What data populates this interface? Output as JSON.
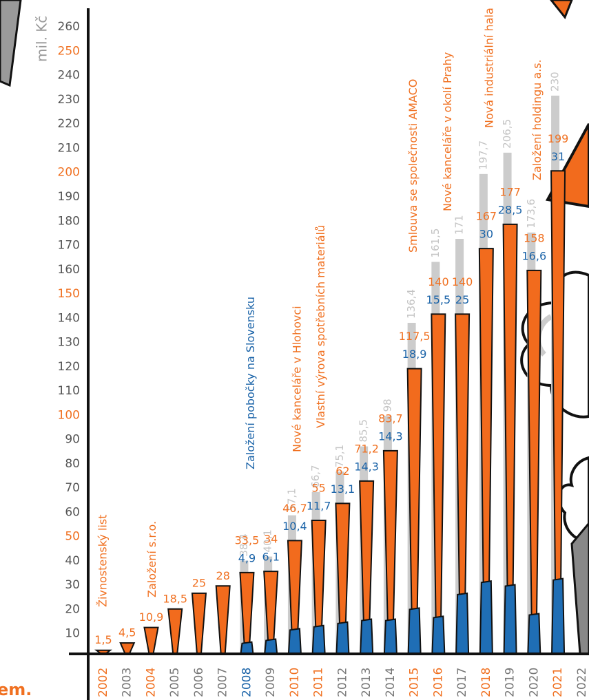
{
  "chart_data": {
    "type": "bar",
    "ylabel": "mil. Kč",
    "footer": "em.",
    "categories": [
      "2002",
      "2003",
      "2004",
      "2005",
      "2006",
      "2007",
      "2008",
      "2009",
      "2010",
      "2011",
      "2012",
      "2013",
      "2014",
      "2015",
      "2016",
      "2017",
      "2018",
      "2019",
      "2020",
      "2021",
      "2022"
    ],
    "category_label_colors": [
      "#f07020",
      "#777777",
      "#f07020",
      "#777777",
      "#777777",
      "#777777",
      "#1a63a8",
      "#777777",
      "#f07020",
      "#f07020",
      "#777777",
      "#777777",
      "#777777",
      "#f07020",
      "#f07020",
      "#777777",
      "#f07020",
      "#777777",
      "#777777",
      "#f07020",
      "#777777"
    ],
    "series": [
      {
        "color": "#cccccc",
        "label_color": "#c4c4c4",
        "values": [
          null,
          null,
          null,
          null,
          null,
          null,
          38.4,
          40.1,
          57.1,
          66.7,
          75.1,
          85.5,
          98,
          136.4,
          161.5,
          171,
          197.7,
          206.5,
          173.6,
          230,
          null
        ],
        "value_labels": [
          null,
          null,
          null,
          null,
          null,
          null,
          "38,4",
          "40,1",
          "57,1",
          "66,7",
          "75,1",
          "85,5",
          "98",
          "136,4",
          "161,5",
          "171",
          "197,7",
          "206,5",
          "173,6",
          "230",
          null
        ]
      },
      {
        "color": "#f26b1d",
        "label_color": "#f07020",
        "values": [
          1.5,
          4.5,
          10.9,
          18.5,
          25,
          28,
          33.5,
          34,
          46.7,
          55,
          62,
          71.2,
          83.7,
          117.5,
          140,
          140,
          167,
          177,
          158,
          199,
          null
        ],
        "value_labels": [
          "1,5",
          "4,5",
          "10,9",
          "18,5",
          "25",
          "28",
          "33,5",
          "34",
          "46,7",
          "55",
          "62",
          "71,2",
          "83,7",
          "117,5",
          "140",
          "140",
          "167",
          "177",
          "158",
          "199",
          null
        ]
      },
      {
        "color": "#1f6eb5",
        "label_color": "#1a63a8",
        "values": [
          null,
          null,
          null,
          null,
          null,
          null,
          4.9,
          6.1,
          10.4,
          11.7,
          13.1,
          14.3,
          14.3,
          18.9,
          15.5,
          25,
          30,
          28.5,
          16.6,
          31,
          null
        ],
        "value_labels": [
          null,
          null,
          null,
          null,
          null,
          null,
          "4,9",
          "6,1",
          "10,4",
          "11,7",
          "13,1",
          "14,3",
          "14,3",
          "18,9",
          "15,5",
          "25",
          "30",
          "28,5",
          "16,6",
          "31",
          null
        ]
      }
    ],
    "ylim": [
      0,
      266
    ],
    "yticks": [
      10,
      20,
      30,
      40,
      50,
      60,
      70,
      80,
      90,
      100,
      110,
      120,
      130,
      140,
      150,
      160,
      170,
      180,
      190,
      200,
      210,
      220,
      230,
      240,
      250,
      260
    ],
    "ytick_label_colors": [
      "#555555",
      "#555555",
      "#555555",
      "#555555",
      "#f07020",
      "#555555",
      "#555555",
      "#555555",
      "#555555",
      "#f07020",
      "#555555",
      "#555555",
      "#555555",
      "#555555",
      "#f07020",
      "#555555",
      "#555555",
      "#555555",
      "#555555",
      "#f07020",
      "#555555",
      "#555555",
      "#555555",
      "#555555",
      "#f07020",
      "#555555"
    ],
    "annotations": [
      {
        "text": "Živnostenský list",
        "x": "2002",
        "color": "#f07020"
      },
      {
        "text": "Založení s.r.o.",
        "x": "2004",
        "color": "#f07020"
      },
      {
        "text": "Založení pobočky na Slovensku",
        "x": "2008",
        "color": "#1a63a8"
      },
      {
        "text": "Nové kanceláře v Hlohovci",
        "x": "2010",
        "color": "#f07020"
      },
      {
        "text": "Vlastní výrova spotřebních materiálů",
        "x": "2011",
        "color": "#f07020"
      },
      {
        "text": "Smlouva se společnosti AMACO",
        "x": "2015",
        "color": "#f07020"
      },
      {
        "text": "Nové kanceláře v okolí Prahy",
        "x": "2016",
        "color": "#f07020"
      },
      {
        "text": "Nová industriální hala",
        "x": "2018",
        "color": "#f07020"
      },
      {
        "text": "Založení holdingu a.s.",
        "x": "2020",
        "color": "#f07020"
      }
    ]
  }
}
